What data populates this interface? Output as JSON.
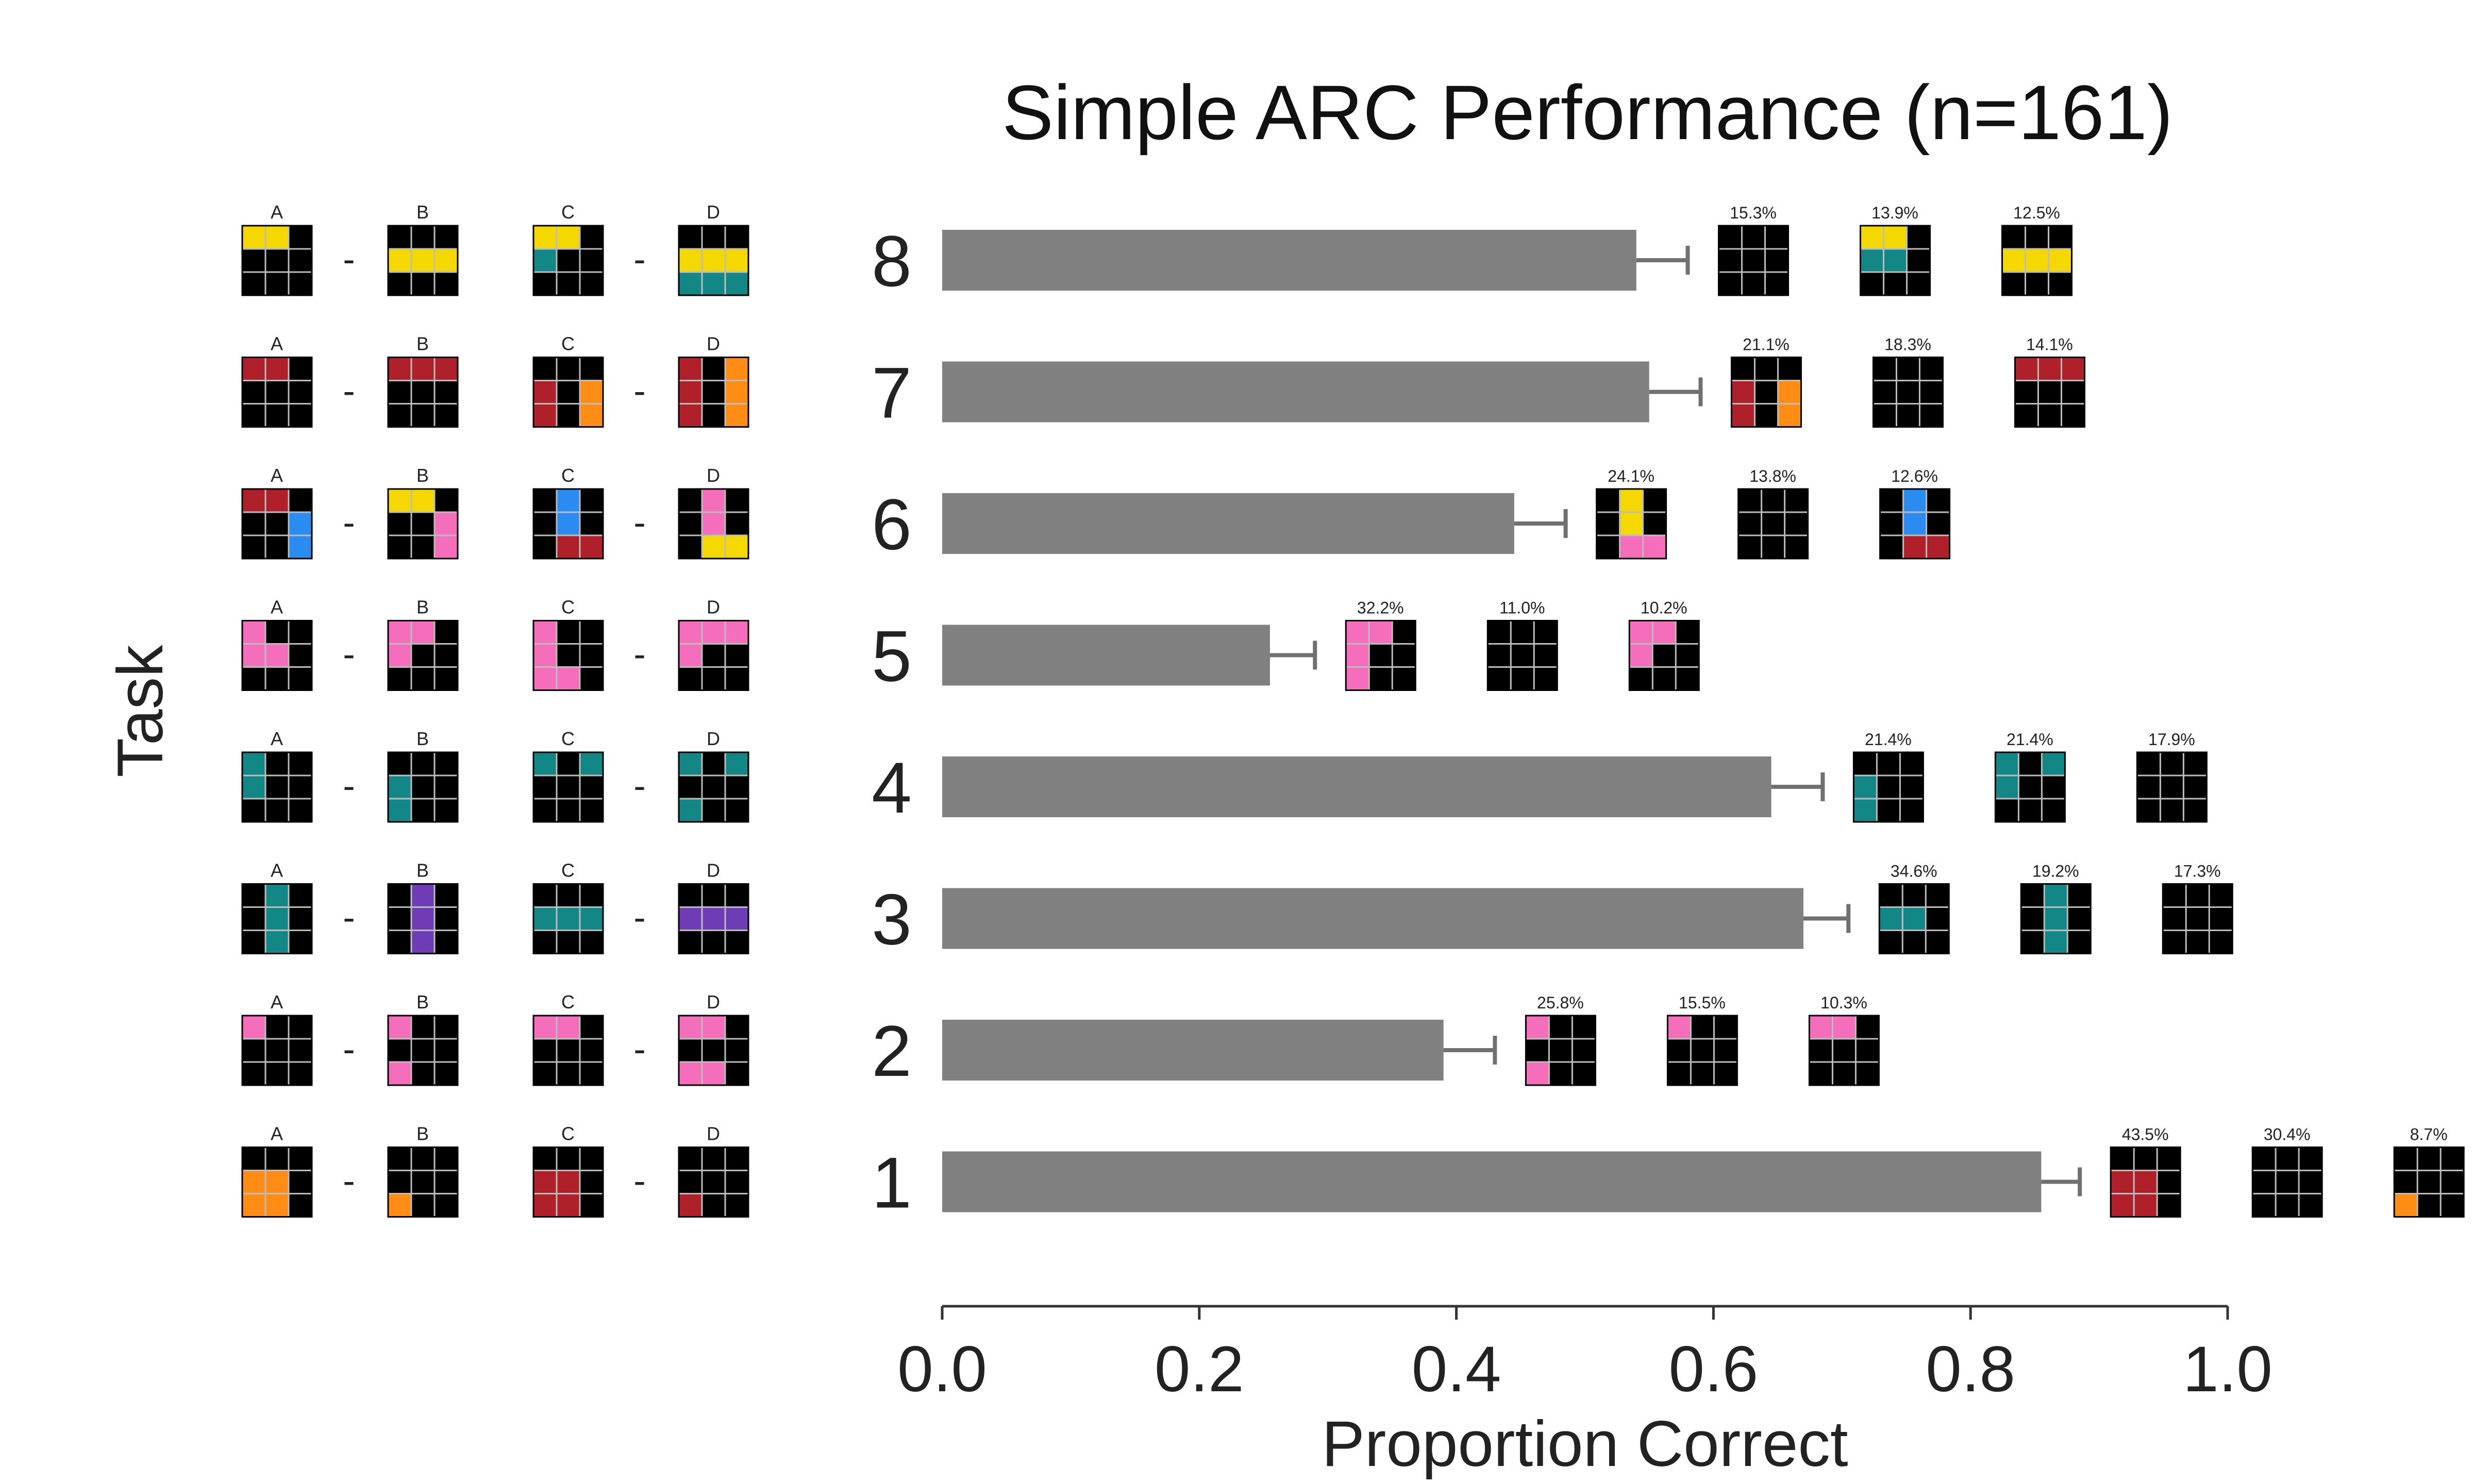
{
  "chart_data": {
    "type": "bar",
    "orientation": "horizontal",
    "title": "Simple ARC Performance (n=161)",
    "xlabel": "Proportion Correct",
    "ylabel": "Task",
    "xlim": [
      0.0,
      1.0
    ],
    "xticks": [
      "0.0",
      "0.2",
      "0.4",
      "0.6",
      "0.8",
      "1.0"
    ],
    "grid": false,
    "bar_color": "#808080",
    "palette": {
      "k": "#000000",
      "y": "#F5D800",
      "t": "#138686",
      "r": "#B0202A",
      "o": "#FF8C14",
      "b": "#2A8CF0",
      "p": "#F56EBB",
      "v": "#6E3CB4"
    },
    "panel_labels": [
      "A",
      "B",
      "C",
      "D"
    ],
    "separator": "-",
    "categories": [
      "8",
      "7",
      "6",
      "5",
      "4",
      "3",
      "2",
      "1"
    ],
    "values": [
      0.54,
      0.55,
      0.445,
      0.255,
      0.645,
      0.67,
      0.39,
      0.855
    ],
    "errors": [
      0.04,
      0.04,
      0.04,
      0.035,
      0.04,
      0.035,
      0.04,
      0.03
    ],
    "tasks": [
      {
        "task": "8",
        "grids": [
          "yykkkkkkk",
          "kkkyyykkk",
          "yyktkkkkkk",
          "kkkyyyttt"
        ],
        "errors": [
          {
            "label": "15.3%",
            "grid": "kkkkkkkkk"
          },
          {
            "label": "13.9%",
            "grid": "yykttkkkk"
          },
          {
            "label": "12.5%",
            "grid": "kkkyyykkk"
          }
        ]
      },
      {
        "task": "7",
        "grids": [
          "rrkkkkkkk",
          "rrrkkkkkk",
          "kkkrkorko",
          "rkorkorko"
        ],
        "errors": [
          {
            "label": "21.1%",
            "grid": "kkkrkorko"
          },
          {
            "label": "18.3%",
            "grid": "kkkkkkkkk"
          },
          {
            "label": "14.1%",
            "grid": "rrrkkkkkk"
          }
        ]
      },
      {
        "task": "6",
        "grids": [
          "rrkkkbkkb",
          "yykkkpkkp",
          "kbkkbkkrr",
          "kpkkpkkyy"
        ],
        "errors": [
          {
            "label": "24.1%",
            "grid": "kykkykkpp"
          },
          {
            "label": "13.8%",
            "grid": "kkkkkkkkk"
          },
          {
            "label": "12.6%",
            "grid": "kbkkbkkrr"
          }
        ]
      },
      {
        "task": "5",
        "grids": [
          "pkkppkkkk",
          "ppkpkkkkk",
          "pkkpkkppk",
          "ppppkkkkk"
        ],
        "errors": [
          {
            "label": "32.2%",
            "grid": "ppkpkkpkk"
          },
          {
            "label": "11.0%",
            "grid": "kkkkkkkkk"
          },
          {
            "label": "10.2%",
            "grid": "ppkpkkkkk"
          }
        ]
      },
      {
        "task": "4",
        "grids": [
          "tkktkkkkk",
          "kkktkktkk",
          "tktkkkkkk",
          "tktkkktkk"
        ],
        "errors": [
          {
            "label": "21.4%",
            "grid": "kkktkktkk"
          },
          {
            "label": "21.4%",
            "grid": "tkttkkkkk"
          },
          {
            "label": "17.9%",
            "grid": "kkkkkkkkk"
          }
        ]
      },
      {
        "task": "3",
        "grids": [
          "ktkktkktk",
          "kvkkvkkvk",
          "kkktttkkk",
          "kkkvvvkkk"
        ],
        "errors": [
          {
            "label": "34.6%",
            "grid": "kkkttkkkk"
          },
          {
            "label": "19.2%",
            "grid": "ktkktkktk"
          },
          {
            "label": "17.3%",
            "grid": "kkkkkkkkk"
          }
        ]
      },
      {
        "task": "2",
        "grids": [
          "pkkkkkkkk",
          "pkkkkkpkk",
          "ppkkkkkkk",
          "ppkkkkppk"
        ],
        "errors": [
          {
            "label": "25.8%",
            "grid": "pkkkkkpkk"
          },
          {
            "label": "15.5%",
            "grid": "pkkkkkkkk"
          },
          {
            "label": "10.3%",
            "grid": "ppkkkkkkk"
          }
        ]
      },
      {
        "task": "1",
        "grids": [
          "kkkookook",
          "kkkkkkokk",
          "kkkrrkrrk",
          "kkkkkkrkk"
        ],
        "errors": [
          {
            "label": "43.5%",
            "grid": "kkkrrkrrk"
          },
          {
            "label": "30.4%",
            "grid": "kkkkkkkkk"
          },
          {
            "label": "8.7%",
            "grid": "kkkkkkokk"
          }
        ]
      }
    ]
  }
}
